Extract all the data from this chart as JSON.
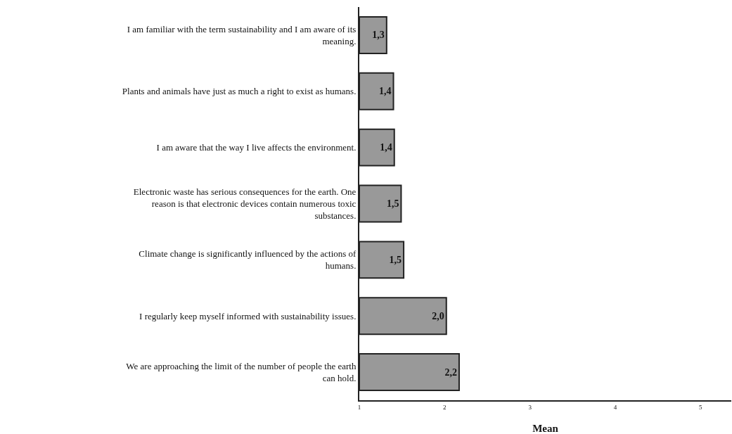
{
  "chart_data": {
    "type": "bar",
    "orientation": "horizontal",
    "xlabel": "Mean",
    "categories": [
      "I am familiar with the term sustainability and I am aware of its meaning.",
      "Plants and animals have just as much a right to exist as humans.",
      "I am aware that the way I live affects the environment.",
      "Electronic waste has serious consequences for the earth. One reason is that electronic devices contain numerous toxic substances.",
      "Climate change is significantly influenced by the actions of humans.",
      "I regularly keep myself informed with sustainability issues.",
      "We are approaching the limit of the number of people the earth can hold."
    ],
    "values": [
      1.32,
      1.4,
      1.41,
      1.49,
      1.52,
      2.02,
      2.17
    ],
    "value_labels": [
      "1,3",
      "1,4",
      "1,4",
      "1,5",
      "1,5",
      "2,0",
      "2,2"
    ],
    "color": "#999999",
    "xlim": [
      1,
      5.36
    ],
    "xticks": [
      1,
      2,
      3,
      4,
      5
    ]
  }
}
